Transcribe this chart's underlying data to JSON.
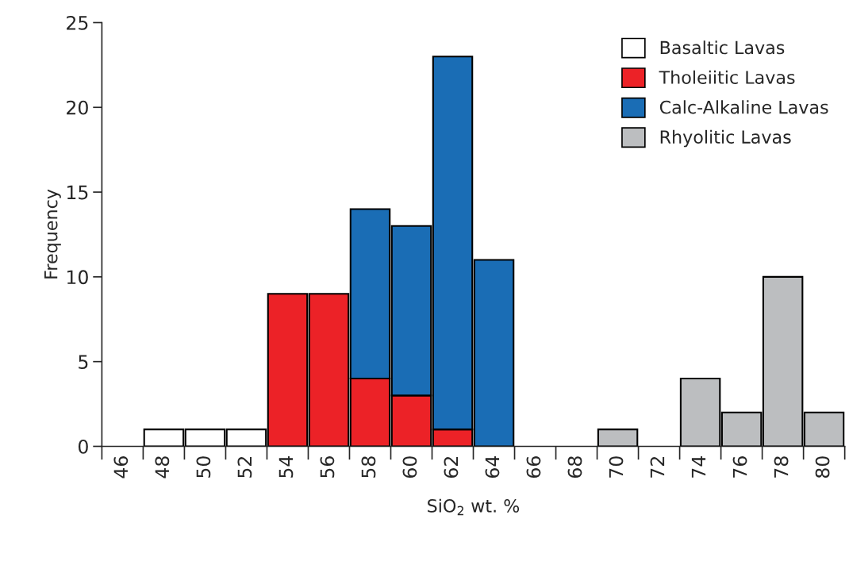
{
  "chart_data": {
    "type": "bar",
    "stacked": true,
    "xlabel": "SiO$_{2}$ wt. %",
    "ylabel": "Frequency",
    "categories": [
      "46",
      "48",
      "50",
      "52",
      "54",
      "56",
      "58",
      "60",
      "62",
      "64",
      "66",
      "68",
      "70",
      "72",
      "74",
      "76",
      "78",
      "80"
    ],
    "series": [
      {
        "name": "Basaltic Lavas",
        "color": "#ffffff",
        "values": [
          null,
          1,
          1,
          1,
          null,
          null,
          null,
          null,
          null,
          null,
          null,
          null,
          null,
          null,
          null,
          null,
          null,
          null
        ]
      },
      {
        "name": "Tholeiitic Lavas",
        "color": "#ec2227",
        "values": [
          null,
          null,
          null,
          null,
          9,
          9,
          4,
          3,
          1,
          null,
          null,
          null,
          null,
          null,
          null,
          null,
          null,
          null
        ]
      },
      {
        "name": "Calc-Alkaline Lavas",
        "color": "#1a6db5",
        "values": [
          null,
          null,
          null,
          null,
          null,
          null,
          10,
          10,
          22,
          11,
          null,
          null,
          null,
          null,
          null,
          null,
          null,
          null
        ]
      },
      {
        "name": "Rhyolitic Lavas",
        "color": "#bcbec0",
        "values": [
          null,
          null,
          null,
          null,
          null,
          null,
          null,
          null,
          null,
          null,
          null,
          null,
          1,
          null,
          4,
          2,
          10,
          2
        ]
      }
    ],
    "ylim": [
      0,
      25
    ],
    "yticks": [
      0,
      5,
      10,
      15,
      20,
      25
    ],
    "grid": false,
    "legend": "top right"
  }
}
